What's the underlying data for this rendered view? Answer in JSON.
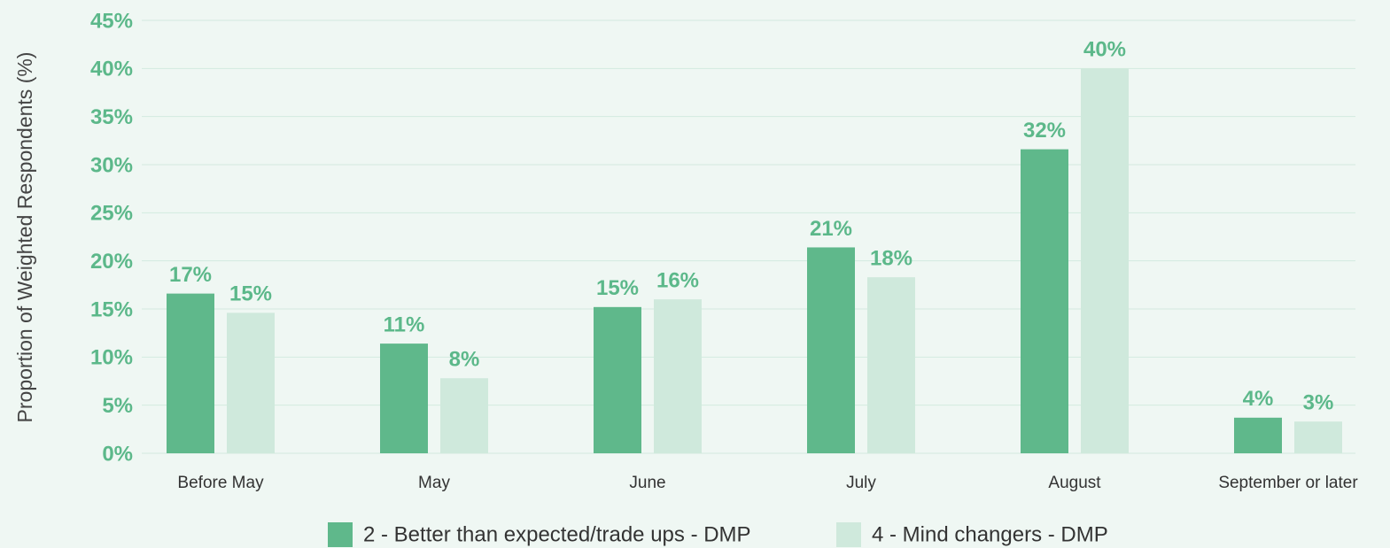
{
  "chart_data": {
    "type": "bar",
    "y_label": "Proportion of Weighted Respondents (%)",
    "categories": [
      "Before May",
      "May",
      "June",
      "July",
      "August",
      "September or later"
    ],
    "series": [
      {
        "name": "2 - Better than expected/trade ups - DMP",
        "color": "#5fb88b",
        "values": [
          16.6,
          11.4,
          15.2,
          21.4,
          31.6,
          3.7
        ],
        "value_labels": [
          "17%",
          "11%",
          "15%",
          "21%",
          "32%",
          "4%"
        ]
      },
      {
        "name": "4 - Mind changers - DMP",
        "color": "#cfe9dc",
        "values": [
          14.6,
          7.8,
          16.0,
          18.3,
          40.0,
          3.3
        ],
        "value_labels": [
          "15%",
          "8%",
          "16%",
          "18%",
          "40%",
          "3%"
        ]
      }
    ],
    "ylim": [
      0,
      45
    ],
    "yticks": [
      {
        "value": 0,
        "label": "0%"
      },
      {
        "value": 5,
        "label": "5%"
      },
      {
        "value": 10,
        "label": "10%"
      },
      {
        "value": 15,
        "label": "15%"
      },
      {
        "value": 20,
        "label": "20%"
      },
      {
        "value": 25,
        "label": "25%"
      },
      {
        "value": 30,
        "label": "30%"
      },
      {
        "value": 35,
        "label": "35%"
      },
      {
        "value": 40,
        "label": "40%"
      },
      {
        "value": 45,
        "label": "45%"
      }
    ],
    "grid": true,
    "legend": "bottom"
  }
}
